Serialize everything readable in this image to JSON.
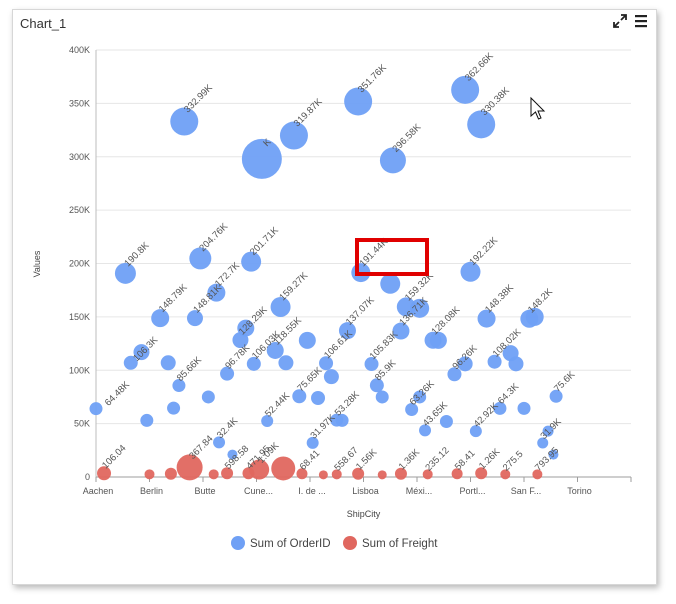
{
  "window": {
    "title": "Chart_1"
  },
  "toolbar": {
    "expand_icon": "expand-arrows-icon",
    "menu_icon": "hamburger-menu-icon"
  },
  "chart_data": {
    "type": "bubble",
    "xlabel": "ShipCity",
    "ylabel": "Values",
    "ylim": [
      0,
      400000
    ],
    "yticks": [
      "0",
      "50K",
      "100K",
      "150K",
      "200K",
      "250K",
      "300K",
      "350K",
      "400K"
    ],
    "categories": [
      "Aachen",
      "Berlin",
      "Butte",
      "Cune...",
      "I. de ...",
      "Lisboa",
      "Méxi...",
      "Portl...",
      "San F...",
      "Torino"
    ],
    "grid": "horizontal",
    "legend_position": "bottom",
    "series": [
      {
        "name": "Sum of OrderID",
        "color": "#6fa0f5",
        "points": [
          {
            "x": 0.0,
            "y": 64000,
            "r": 6.5
          },
          {
            "x": 0.55,
            "y": 190800,
            "r": 10.5,
            "label": "190.8K"
          },
          {
            "x": 0.65,
            "y": 107000,
            "r": 7
          },
          {
            "x": 0.85,
            "y": 117000,
            "r": 8
          },
          {
            "x": 0.95,
            "y": 53000,
            "r": 6.5
          },
          {
            "x": 0.75,
            "y": 106300,
            "r": 0,
            "label": "106.3K"
          },
          {
            "x": 0.22,
            "y": 64480,
            "r": 0,
            "label": "64.48K"
          },
          {
            "x": 1.2,
            "y": 148790,
            "r": 9,
            "label": "148.79K"
          },
          {
            "x": 1.35,
            "y": 107000,
            "r": 7.5
          },
          {
            "x": 1.45,
            "y": 64500,
            "r": 6.5
          },
          {
            "x": 1.55,
            "y": 85660,
            "r": 6.5,
            "label": "85.66K"
          },
          {
            "x": 1.65,
            "y": 332990,
            "r": 14,
            "label": "332.99K"
          },
          {
            "x": 1.85,
            "y": 148810,
            "r": 8,
            "label": "148.81K"
          },
          {
            "x": 1.95,
            "y": 204760,
            "r": 11,
            "label": "204.76K"
          },
          {
            "x": 2.1,
            "y": 75000,
            "r": 6.5
          },
          {
            "x": 2.25,
            "y": 172700,
            "r": 9,
            "label": "172.7K"
          },
          {
            "x": 2.3,
            "y": 32400,
            "r": 6,
            "label": "32.4K"
          },
          {
            "x": 2.45,
            "y": 96780,
            "r": 7,
            "label": "96.78K"
          },
          {
            "x": 2.55,
            "y": 21000,
            "r": 5
          },
          {
            "x": 2.7,
            "y": 128290,
            "r": 8,
            "label": "128.29K"
          },
          {
            "x": 2.8,
            "y": 139500,
            "r": 8.5
          },
          {
            "x": 2.9,
            "y": 201710,
            "r": 10,
            "label": "201.71K"
          },
          {
            "x": 2.95,
            "y": 106030,
            "r": 7,
            "label": "106.03K"
          },
          {
            "x": 3.1,
            "y": 298000,
            "r": 20,
            "label": "K"
          },
          {
            "x": 3.2,
            "y": 52440,
            "r": 6,
            "label": "52.44K"
          },
          {
            "x": 3.35,
            "y": 118550,
            "r": 8.5,
            "label": "118.55K"
          },
          {
            "x": 3.45,
            "y": 159270,
            "r": 10,
            "label": "159.27K"
          },
          {
            "x": 3.55,
            "y": 107000,
            "r": 7.5
          },
          {
            "x": 3.7,
            "y": 319870,
            "r": 14,
            "label": "319.87K"
          },
          {
            "x": 3.8,
            "y": 75650,
            "r": 7,
            "label": "75.65K"
          },
          {
            "x": 3.95,
            "y": 128000,
            "r": 8.5
          },
          {
            "x": 4.05,
            "y": 31970,
            "r": 6,
            "label": "31.97K"
          },
          {
            "x": 4.15,
            "y": 74000,
            "r": 7
          },
          {
            "x": 4.3,
            "y": 106610,
            "r": 7,
            "label": "106.61K"
          },
          {
            "x": 4.4,
            "y": 94000,
            "r": 7.5
          },
          {
            "x": 4.5,
            "y": 53280,
            "r": 6.5,
            "label": "53.28K"
          },
          {
            "x": 4.6,
            "y": 53000,
            "r": 6.5
          },
          {
            "x": 4.7,
            "y": 137070,
            "r": 8.5,
            "label": "137.07K"
          },
          {
            "x": 4.9,
            "y": 351760,
            "r": 14,
            "label": "351.76K"
          },
          {
            "x": 4.95,
            "y": 191440,
            "r": 9.5,
            "label": "191.44K"
          },
          {
            "x": 5.15,
            "y": 105830,
            "r": 7,
            "label": "105.83K"
          },
          {
            "x": 5.25,
            "y": 85900,
            "r": 7,
            "label": "85.9K"
          },
          {
            "x": 5.35,
            "y": 75000,
            "r": 6.5
          },
          {
            "x": 5.5,
            "y": 181000,
            "r": 10
          },
          {
            "x": 5.55,
            "y": 296580,
            "r": 13,
            "label": "296.58K"
          },
          {
            "x": 5.7,
            "y": 136710,
            "r": 8.5,
            "label": "136.71K"
          },
          {
            "x": 5.8,
            "y": 159320,
            "r": 9.5,
            "label": "159.32K"
          },
          {
            "x": 5.9,
            "y": 63260,
            "r": 6.5,
            "label": "63.26K"
          },
          {
            "x": 6.05,
            "y": 75000,
            "r": 6.5
          },
          {
            "x": 6.15,
            "y": 43650,
            "r": 6,
            "label": "43.65K"
          },
          {
            "x": 6.05,
            "y": 158000,
            "r": 9.5
          },
          {
            "x": 6.3,
            "y": 128080,
            "r": 8.5,
            "label": "128.08K"
          },
          {
            "x": 6.4,
            "y": 128000,
            "r": 8.5
          },
          {
            "x": 6.55,
            "y": 52000,
            "r": 6.5
          },
          {
            "x": 6.7,
            "y": 96260,
            "r": 7,
            "label": "96.26K"
          },
          {
            "x": 6.9,
            "y": 106000,
            "r": 7.5
          },
          {
            "x": 6.9,
            "y": 362660,
            "r": 14,
            "label": "362.66K"
          },
          {
            "x": 7.1,
            "y": 42920,
            "r": 6,
            "label": "42.92K"
          },
          {
            "x": 7.0,
            "y": 192220,
            "r": 10,
            "label": "192.22K"
          },
          {
            "x": 7.3,
            "y": 148380,
            "r": 9,
            "label": "148.38K"
          },
          {
            "x": 7.2,
            "y": 330380,
            "r": 14,
            "label": "330.38K"
          },
          {
            "x": 7.45,
            "y": 108020,
            "r": 7,
            "label": "108.02K"
          },
          {
            "x": 7.55,
            "y": 64300,
            "r": 6.5,
            "label": "64.3K"
          },
          {
            "x": 7.75,
            "y": 116000,
            "r": 8
          },
          {
            "x": 7.85,
            "y": 106000,
            "r": 7.5
          },
          {
            "x": 8.0,
            "y": 64300,
            "r": 6.5
          },
          {
            "x": 8.1,
            "y": 148200,
            "r": 9,
            "label": "148.2K"
          },
          {
            "x": 8.2,
            "y": 150000,
            "r": 9
          },
          {
            "x": 8.35,
            "y": 31900,
            "r": 5.5,
            "label": "31.9K"
          },
          {
            "x": 8.45,
            "y": 43000,
            "r": 5.5
          },
          {
            "x": 8.55,
            "y": 21000,
            "r": 5
          },
          {
            "x": 8.6,
            "y": 75600,
            "r": 6.5,
            "label": "75.6K"
          }
        ]
      },
      {
        "name": "Sum of Freight",
        "color": "#e0675f",
        "points": [
          {
            "x": 0.15,
            "y": 3500,
            "r": 7,
            "label": "106.04"
          },
          {
            "x": 1.0,
            "y": 2500,
            "r": 5
          },
          {
            "x": 1.4,
            "y": 3000,
            "r": 6
          },
          {
            "x": 1.75,
            "y": 9000,
            "r": 13,
            "label": "367.84"
          },
          {
            "x": 2.2,
            "y": 2500,
            "r": 5
          },
          {
            "x": 2.45,
            "y": 3500,
            "r": 6,
            "label": "598.58"
          },
          {
            "x": 2.85,
            "y": 3500,
            "r": 6,
            "label": "471.95"
          },
          {
            "x": 3.05,
            "y": 7000,
            "r": 10,
            "label": "1.09K"
          },
          {
            "x": 3.5,
            "y": 8000,
            "r": 12
          },
          {
            "x": 3.85,
            "y": 3000,
            "r": 5.5,
            "label": "68.41"
          },
          {
            "x": 4.25,
            "y": 2000,
            "r": 4.5
          },
          {
            "x": 4.5,
            "y": 2500,
            "r": 5,
            "label": "558.67"
          },
          {
            "x": 4.9,
            "y": 3000,
            "r": 6,
            "label": "1.56K"
          },
          {
            "x": 5.35,
            "y": 2000,
            "r": 4.5
          },
          {
            "x": 5.7,
            "y": 3000,
            "r": 6,
            "label": "1.36K"
          },
          {
            "x": 6.2,
            "y": 2500,
            "r": 5,
            "label": "235.12"
          },
          {
            "x": 6.75,
            "y": 3000,
            "r": 5.5,
            "label": "58.41"
          },
          {
            "x": 7.2,
            "y": 3500,
            "r": 6,
            "label": "1.26K"
          },
          {
            "x": 7.65,
            "y": 2500,
            "r": 5,
            "label": "275.5"
          },
          {
            "x": 8.25,
            "y": 2500,
            "r": 5,
            "label": "793.95"
          }
        ]
      }
    ]
  }
}
